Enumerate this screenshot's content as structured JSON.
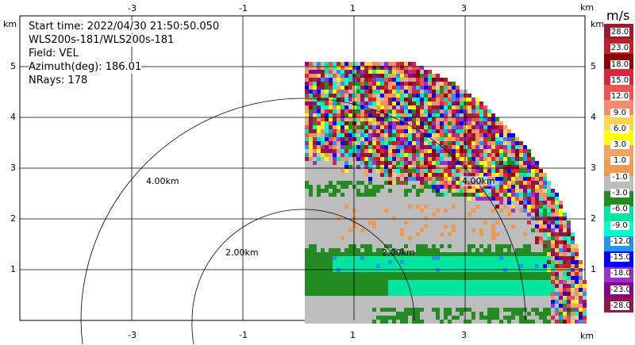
{
  "header": {
    "start_time": "Start time: 2022/04/30 21:50:50.050",
    "station": "WLS200s-181/WLS200s-181",
    "field": "Field: VEL",
    "azimuth": "Azimuth(deg): 186.01",
    "nrays": "NRays: 178"
  },
  "axes": {
    "unit": "km",
    "x_ticks": [
      "-3",
      "-1",
      "1",
      "3"
    ],
    "y_ticks": [
      "1",
      "2",
      "3",
      "4",
      "5"
    ],
    "range_rings": [
      "2.00km",
      "4.00km"
    ]
  },
  "colorbar": {
    "unit": "m/s",
    "labels": [
      "28.0",
      "23.0",
      "18.0",
      "15.0",
      "12.0",
      "9.0",
      "6.0",
      "3.0",
      "1.0",
      "-1.0",
      "-3.0",
      "-6.0",
      "-9.0",
      "-12.0",
      "-15.0",
      "-18.0",
      "-23.0",
      "-28.0"
    ],
    "colors": [
      "#9b1b2e",
      "#c01f2e",
      "#8b0000",
      "#d7263d",
      "#ef5350",
      "#f48a6e",
      "#ffd54f",
      "#ffff00",
      "#f4a460",
      "#ef9a53",
      "#bdbdbd",
      "#228b22",
      "#00e5a0",
      "#00ffcc",
      "#2196f3",
      "#0000ff",
      "#9932cc",
      "#8b008b",
      "#8b1a4a"
    ]
  }
}
